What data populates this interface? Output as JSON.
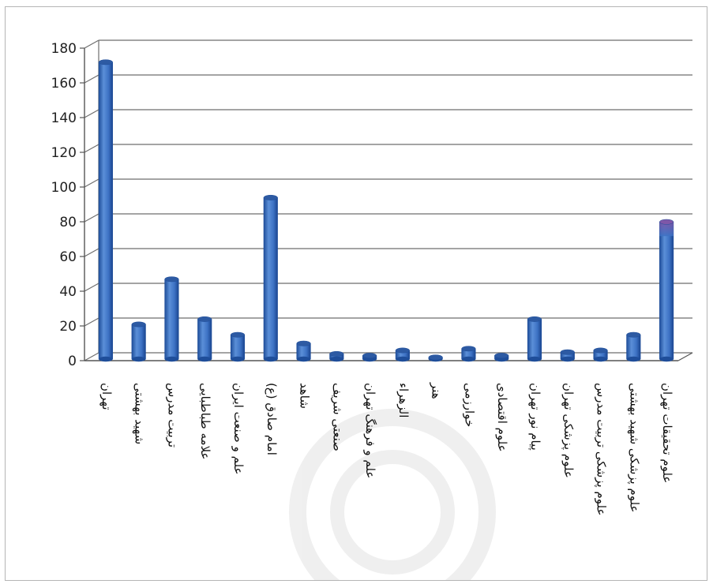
{
  "chart_data": {
    "type": "bar",
    "title": "",
    "xlabel": "",
    "ylabel": "",
    "ylim": [
      0,
      180
    ],
    "yticks": [
      0,
      20,
      40,
      60,
      80,
      100,
      120,
      140,
      160,
      180
    ],
    "grid": true,
    "legend": "none",
    "style": "3d-cylinder",
    "categories": [
      "تهران",
      "شهید بهشتی",
      "تربیت مدرس",
      "علامه طباطبایی",
      "علم و صنعت ایران",
      "امام صادق (ع)",
      "شاهد",
      "صنعتی شریف",
      "علم و فرهنگ تهران",
      "الزهراء",
      "هنر",
      "خوارزمی",
      "علوم اقتصادی",
      "پیام نور تهران",
      "علوم پزشکی تهران",
      "علوم پزشکی تربیت مدرس",
      "علوم پزشکی شهید بهشتی",
      "علوم تحقیقات تهران"
    ],
    "values": [
      171,
      20,
      46,
      23,
      14,
      93,
      9,
      3,
      2,
      5,
      1,
      6,
      2,
      23,
      4,
      5,
      14,
      79
    ],
    "colors": {
      "bar": "#3d72c4",
      "bar_dark": "#1f4e9a",
      "bar_top": "#2d5aa3",
      "highlight_top": "#7e57a8",
      "grid": "#6e6e6e",
      "axis": "#555555"
    }
  }
}
